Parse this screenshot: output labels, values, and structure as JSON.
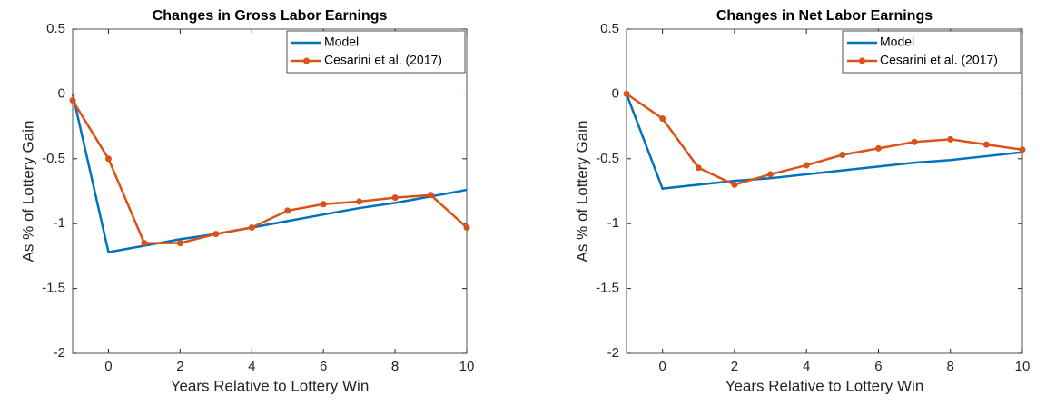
{
  "chart_data": [
    {
      "type": "line",
      "title": "Changes in Gross Labor Earnings",
      "x_label": "Years Relative to Lottery Win",
      "y_label": "As % of Lottery Gain",
      "x": [
        -1,
        0,
        1,
        2,
        3,
        4,
        5,
        6,
        7,
        8,
        9,
        10
      ],
      "series": [
        {
          "name": "Model",
          "color": "#0072bd",
          "marker": false,
          "values": [
            0,
            -1.22,
            -1.17,
            -1.12,
            -1.08,
            -1.03,
            -0.98,
            -0.93,
            -0.88,
            -0.84,
            -0.79,
            -0.74
          ]
        },
        {
          "name": "Cesarini et al. (2017)",
          "color": "#d95319",
          "marker": true,
          "values": [
            -0.05,
            -0.5,
            -1.15,
            -1.15,
            -1.08,
            -1.03,
            -0.9,
            -0.85,
            -0.83,
            -0.8,
            -0.78,
            -1.03
          ]
        }
      ],
      "xlim": [
        -1,
        10
      ],
      "xticks": [
        0,
        2,
        4,
        6,
        8,
        10
      ],
      "ylim": [
        -2,
        0.5
      ],
      "yticks": [
        -2,
        -1.5,
        -1,
        -0.5,
        0,
        0.5
      ],
      "legend": "upper right"
    },
    {
      "type": "line",
      "title": "Changes in Net Labor Earnings",
      "x_label": "Years Relative to Lottery Win",
      "y_label": "As % of Lottery Gain",
      "x": [
        -1,
        0,
        1,
        2,
        3,
        4,
        5,
        6,
        7,
        8,
        9,
        10
      ],
      "series": [
        {
          "name": "Model",
          "color": "#0072bd",
          "marker": false,
          "values": [
            0,
            -0.73,
            -0.7,
            -0.67,
            -0.65,
            -0.62,
            -0.59,
            -0.56,
            -0.53,
            -0.51,
            -0.48,
            -0.45
          ]
        },
        {
          "name": "Cesarini et al. (2017)",
          "color": "#d95319",
          "marker": true,
          "values": [
            0,
            -0.19,
            -0.57,
            -0.7,
            -0.62,
            -0.55,
            -0.47,
            -0.42,
            -0.37,
            -0.35,
            -0.39,
            -0.43
          ]
        }
      ],
      "xlim": [
        -1,
        10
      ],
      "xticks": [
        0,
        2,
        4,
        6,
        8,
        10
      ],
      "ylim": [
        -2,
        0.5
      ],
      "yticks": [
        -2,
        -1.5,
        -1,
        -0.5,
        0,
        0.5
      ],
      "legend": "upper right"
    }
  ]
}
